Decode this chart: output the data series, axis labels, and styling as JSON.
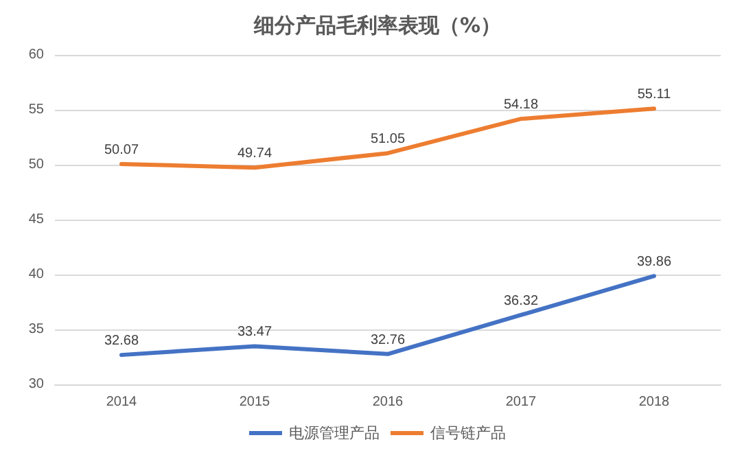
{
  "chart_data": {
    "type": "line",
    "title": "细分产品毛利率表现（%）",
    "categories": [
      "2014",
      "2015",
      "2016",
      "2017",
      "2018"
    ],
    "series": [
      {
        "name": "电源管理产品",
        "color": "#4472c4",
        "values": [
          32.68,
          33.47,
          32.76,
          36.32,
          39.86
        ]
      },
      {
        "name": "信号链产品",
        "color": "#ed7d31",
        "values": [
          50.07,
          49.74,
          51.05,
          54.18,
          55.11
        ]
      }
    ],
    "ylim": [
      30,
      60
    ],
    "yticks": [
      30,
      35,
      40,
      45,
      50,
      55,
      60
    ],
    "grid": "y",
    "legend": "bottom",
    "data_labels": true,
    "marker": "none"
  }
}
